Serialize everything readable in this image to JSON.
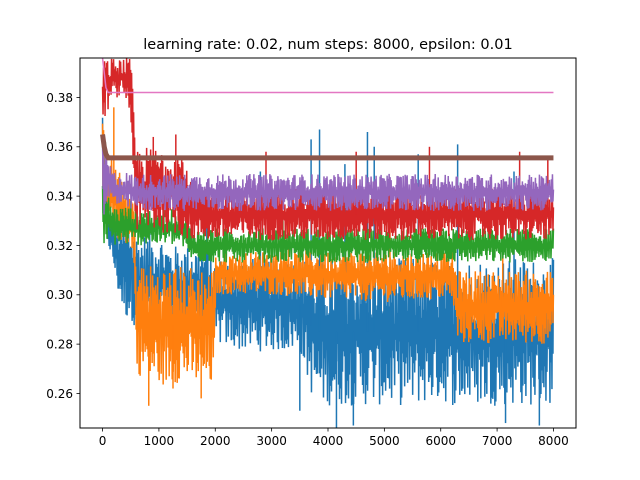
{
  "chart_data": {
    "type": "line",
    "title": "learning rate: 0.02, num steps: 8000, epsilon: 0.01",
    "xlabel": "",
    "ylabel": "",
    "xlim": [
      -400,
      8400
    ],
    "ylim": [
      0.246,
      0.396
    ],
    "x_ticks": [
      0,
      1000,
      2000,
      3000,
      4000,
      5000,
      6000,
      7000,
      8000
    ],
    "x_tick_labels": [
      "0",
      "1000",
      "2000",
      "3000",
      "4000",
      "5000",
      "6000",
      "7000",
      "8000"
    ],
    "y_ticks": [
      0.26,
      0.28,
      0.3,
      0.32,
      0.34,
      0.36,
      0.38
    ],
    "y_tick_labels": [
      "0.26",
      "0.28",
      "0.30",
      "0.32",
      "0.34",
      "0.36",
      "0.38"
    ],
    "grid": false,
    "legend": "none",
    "series": [
      {
        "color": "#1f77b4",
        "stroke_width": 1.5,
        "x": [
          0,
          100,
          200,
          300,
          400,
          500,
          600,
          800,
          1000,
          1200,
          1400,
          1600,
          1800,
          2000,
          2500,
          3000,
          3500,
          3700,
          3800,
          4500,
          5000,
          5500,
          6000,
          6200,
          6400,
          7000,
          7500,
          8000
        ],
        "lo": [
          0.327,
          0.32,
          0.31,
          0.297,
          0.29,
          0.29,
          0.286,
          0.285,
          0.285,
          0.285,
          0.285,
          0.285,
          0.285,
          0.28,
          0.277,
          0.277,
          0.277,
          0.26,
          0.255,
          0.255,
          0.255,
          0.255,
          0.257,
          0.255,
          0.255,
          0.255,
          0.255,
          0.255
        ],
        "hi": [
          0.38,
          0.335,
          0.33,
          0.33,
          0.33,
          0.33,
          0.325,
          0.325,
          0.325,
          0.32,
          0.32,
          0.32,
          0.32,
          0.315,
          0.315,
          0.315,
          0.315,
          0.315,
          0.315,
          0.315,
          0.315,
          0.315,
          0.315,
          0.315,
          0.315,
          0.315,
          0.315,
          0.315
        ],
        "spikes": [
          {
            "x": 1850,
            "y": 0.342
          },
          {
            "x": 2800,
            "y": 0.35
          },
          {
            "x": 3700,
            "y": 0.363
          },
          {
            "x": 3850,
            "y": 0.367
          },
          {
            "x": 4300,
            "y": 0.353
          },
          {
            "x": 4700,
            "y": 0.366
          },
          {
            "x": 4820,
            "y": 0.36
          },
          {
            "x": 5600,
            "y": 0.357
          },
          {
            "x": 6300,
            "y": 0.361
          },
          {
            "x": 7300,
            "y": 0.35
          },
          {
            "x": 3500,
            "y": 0.253
          },
          {
            "x": 4150,
            "y": 0.246
          },
          {
            "x": 4450,
            "y": 0.247
          },
          {
            "x": 7150,
            "y": 0.248
          },
          {
            "x": 7750,
            "y": 0.247
          }
        ]
      },
      {
        "color": "#ff7f0e",
        "stroke_width": 1.5,
        "x": [
          0,
          100,
          200,
          300,
          400,
          550,
          600,
          800,
          1000,
          1200,
          1400,
          1600,
          1800,
          1990,
          2010,
          3000,
          4000,
          5000,
          6000,
          6200,
          6300,
          7000,
          7500,
          8000
        ],
        "lo": [
          0.335,
          0.327,
          0.323,
          0.322,
          0.32,
          0.318,
          0.268,
          0.265,
          0.263,
          0.263,
          0.265,
          0.263,
          0.262,
          0.262,
          0.3,
          0.3,
          0.298,
          0.297,
          0.298,
          0.298,
          0.28,
          0.28,
          0.28,
          0.28
        ],
        "hi": [
          0.37,
          0.36,
          0.355,
          0.35,
          0.345,
          0.34,
          0.315,
          0.313,
          0.312,
          0.312,
          0.312,
          0.312,
          0.312,
          0.312,
          0.317,
          0.318,
          0.318,
          0.318,
          0.318,
          0.318,
          0.31,
          0.31,
          0.31,
          0.31
        ],
        "spikes": [
          {
            "x": 820,
            "y": 0.255
          },
          {
            "x": 1250,
            "y": 0.262
          },
          {
            "x": 1750,
            "y": 0.258
          },
          {
            "x": 200,
            "y": 0.376
          },
          {
            "x": 3300,
            "y": 0.335
          },
          {
            "x": 5100,
            "y": 0.333
          },
          {
            "x": 7100,
            "y": 0.332
          }
        ]
      },
      {
        "color": "#2ca02c",
        "stroke_width": 1.5,
        "x": [
          0,
          200,
          400,
          600,
          800,
          1000,
          1200,
          1400,
          1600,
          2000,
          3000,
          4000,
          5000,
          6000,
          7000,
          8000
        ],
        "lo": [
          0.32,
          0.32,
          0.32,
          0.32,
          0.32,
          0.32,
          0.32,
          0.32,
          0.313,
          0.313,
          0.313,
          0.313,
          0.313,
          0.313,
          0.313,
          0.313
        ],
        "hi": [
          0.345,
          0.336,
          0.336,
          0.335,
          0.335,
          0.335,
          0.335,
          0.333,
          0.327,
          0.327,
          0.327,
          0.327,
          0.327,
          0.327,
          0.327,
          0.327
        ],
        "spikes": [
          {
            "x": 50,
            "y": 0.362
          },
          {
            "x": 500,
            "y": 0.338
          },
          {
            "x": 3200,
            "y": 0.33
          }
        ]
      },
      {
        "color": "#d62728",
        "stroke_width": 1.5,
        "x": [
          0,
          100,
          200,
          300,
          400,
          500,
          600,
          800,
          1000,
          1200,
          1400,
          1600,
          2000,
          3000,
          4000,
          5000,
          6000,
          7000,
          8000
        ],
        "lo": [
          0.37,
          0.375,
          0.38,
          0.38,
          0.38,
          0.37,
          0.322,
          0.325,
          0.325,
          0.325,
          0.323,
          0.322,
          0.322,
          0.322,
          0.322,
          0.322,
          0.322,
          0.322,
          0.322
        ],
        "hi": [
          0.396,
          0.396,
          0.396,
          0.396,
          0.396,
          0.396,
          0.36,
          0.36,
          0.36,
          0.36,
          0.36,
          0.343,
          0.343,
          0.343,
          0.343,
          0.343,
          0.343,
          0.343,
          0.343
        ],
        "spikes": [
          {
            "x": 900,
            "y": 0.364
          },
          {
            "x": 1300,
            "y": 0.365
          },
          {
            "x": 2900,
            "y": 0.358
          },
          {
            "x": 4500,
            "y": 0.358
          },
          {
            "x": 5800,
            "y": 0.36
          },
          {
            "x": 7400,
            "y": 0.358
          },
          {
            "x": 7900,
            "y": 0.356
          }
        ]
      },
      {
        "color": "#9467bd",
        "stroke_width": 1.5,
        "x": [
          0,
          100,
          200,
          400,
          600,
          1000,
          2000,
          3000,
          4000,
          5000,
          6000,
          7000,
          8000
        ],
        "lo": [
          0.33,
          0.338,
          0.336,
          0.334,
          0.334,
          0.334,
          0.334,
          0.334,
          0.334,
          0.334,
          0.334,
          0.334,
          0.334
        ],
        "hi": [
          0.366,
          0.355,
          0.35,
          0.35,
          0.349,
          0.349,
          0.349,
          0.349,
          0.349,
          0.349,
          0.349,
          0.349,
          0.349
        ],
        "spikes": []
      }
    ],
    "lines": [
      {
        "color": "#e377c2",
        "stroke_width": 1.5,
        "x": [
          0,
          30,
          60,
          100,
          8000
        ],
        "y": [
          0.396,
          0.39,
          0.384,
          0.382,
          0.382
        ]
      },
      {
        "color": "#8c564b",
        "stroke_width": 5,
        "x": [
          0,
          30,
          60,
          100,
          8000
        ],
        "y": [
          0.365,
          0.36,
          0.357,
          0.3555,
          0.3555
        ]
      }
    ]
  }
}
